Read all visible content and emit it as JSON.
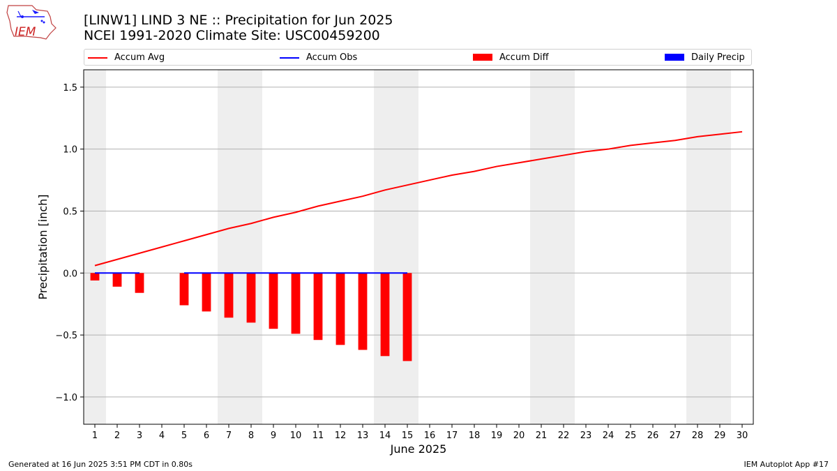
{
  "header": {
    "title_line1": "[LINW1] LIND 3 NE :: Precipitation for Jun 2025",
    "title_line2": "NCEI 1991-2020 Climate Site: USC00459200",
    "logo_text": "IEM"
  },
  "legend": {
    "items": [
      {
        "label": "Accum Avg",
        "color": "#ff0000",
        "kind": "line"
      },
      {
        "label": "Accum Obs",
        "color": "#0000ff",
        "kind": "line"
      },
      {
        "label": "Accum Diff",
        "color": "#ff0000",
        "kind": "box"
      },
      {
        "label": "Daily Precip",
        "color": "#0000ff",
        "kind": "box"
      }
    ]
  },
  "footer": {
    "left": "Generated at 16 Jun 2025 3:51 PM CDT in 0.80s",
    "right": "IEM Autoplot App #17"
  },
  "chart_data": {
    "type": "bar",
    "xlabel": "June 2025",
    "ylabel": "Precipitation [inch]",
    "xlim": [
      0.5,
      30.5
    ],
    "ylim": [
      -1.22,
      1.64
    ],
    "yticks": [
      -1.0,
      -0.5,
      0.0,
      0.5,
      1.0,
      1.5
    ],
    "ytick_labels": [
      "−1.0",
      "−0.5",
      "0.0",
      "0.5",
      "1.0",
      "1.5"
    ],
    "xticks": [
      1,
      2,
      3,
      4,
      5,
      6,
      7,
      8,
      9,
      10,
      11,
      12,
      13,
      14,
      15,
      16,
      17,
      18,
      19,
      20,
      21,
      22,
      23,
      24,
      25,
      26,
      27,
      28,
      29,
      30
    ],
    "grid": "horizontal",
    "weekend_shading": [
      [
        0.5,
        1.5
      ],
      [
        6.5,
        8.5
      ],
      [
        13.5,
        15.5
      ],
      [
        20.5,
        22.5
      ],
      [
        27.5,
        29.5
      ]
    ],
    "shading_color": "#eeeeee",
    "accum_avg": {
      "days": [
        1,
        2,
        3,
        4,
        5,
        6,
        7,
        8,
        9,
        10,
        11,
        12,
        13,
        14,
        15,
        16,
        17,
        18,
        19,
        20,
        21,
        22,
        23,
        24,
        25,
        26,
        27,
        28,
        29,
        30
      ],
      "values": [
        0.06,
        0.11,
        0.16,
        0.21,
        0.26,
        0.31,
        0.36,
        0.4,
        0.45,
        0.49,
        0.54,
        0.58,
        0.62,
        0.67,
        0.71,
        0.75,
        0.79,
        0.82,
        0.86,
        0.89,
        0.92,
        0.95,
        0.98,
        1.0,
        1.03,
        1.05,
        1.07,
        1.1,
        1.12,
        1.14
      ],
      "color": "#ff0000"
    },
    "accum_obs": {
      "segments": [
        {
          "days": [
            1,
            2,
            3
          ],
          "values": [
            0,
            0,
            0
          ]
        },
        {
          "days": [
            5,
            6,
            7,
            8,
            9,
            10,
            11,
            12,
            13,
            14,
            15
          ],
          "values": [
            0,
            0,
            0,
            0,
            0,
            0,
            0,
            0,
            0,
            0,
            0
          ]
        }
      ],
      "color": "#0000ff"
    },
    "accum_diff": {
      "days": [
        1,
        2,
        3,
        5,
        6,
        7,
        8,
        9,
        10,
        11,
        12,
        13,
        14,
        15
      ],
      "values": [
        -0.06,
        -0.11,
        -0.16,
        -0.26,
        -0.31,
        -0.36,
        -0.4,
        -0.45,
        -0.49,
        -0.54,
        -0.58,
        -0.62,
        -0.67,
        -0.71
      ],
      "color": "#ff0000"
    },
    "daily_precip": {
      "days": [
        1,
        2,
        3,
        5,
        6,
        7,
        8,
        9,
        10,
        11,
        12,
        13,
        14,
        15
      ],
      "values": [
        0,
        0,
        0,
        0,
        0,
        0,
        0,
        0,
        0,
        0,
        0,
        0,
        0,
        0
      ],
      "color": "#0000ff"
    }
  }
}
